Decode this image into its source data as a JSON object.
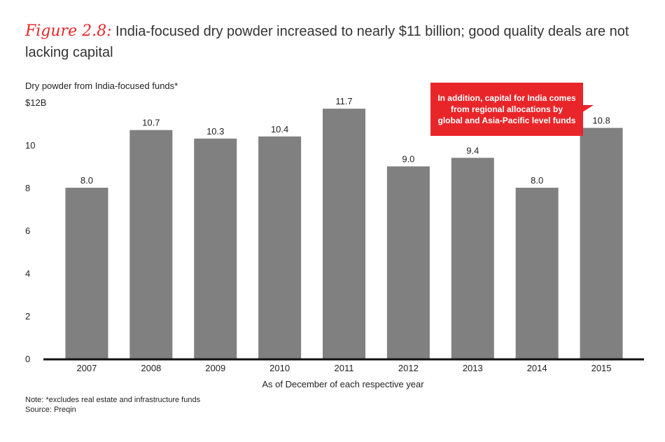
{
  "title": {
    "figure_label": "Figure 2.8:",
    "text": "India-focused dry powder increased to nearly $11 billion; good quality deals are not lacking capital"
  },
  "note": "Note: *excludes real estate and infrastructure funds",
  "source": "Source: Preqin",
  "callout": {
    "text": "In addition, capital for India comes from regional allocations by global and Asia-Pacific level funds",
    "color": "#e8262a"
  },
  "chart_data": {
    "type": "bar",
    "ylabel": "Dry powder from India-focused funds*",
    "xlabel": "As of December of each respective year",
    "categories": [
      "2007",
      "2008",
      "2009",
      "2010",
      "2011",
      "2012",
      "2013",
      "2014",
      "2015"
    ],
    "values": [
      8.0,
      10.7,
      10.3,
      10.4,
      11.7,
      9.0,
      9.4,
      8.0,
      10.8
    ],
    "value_labels": [
      "8.0",
      "10.7",
      "10.3",
      "10.4",
      "11.7",
      "9.0",
      "9.4",
      "8.0",
      "10.8"
    ],
    "ylim": [
      0,
      12
    ],
    "yticks": [
      0,
      2,
      4,
      6,
      8,
      10,
      12
    ],
    "ytick_labels": [
      "0",
      "2",
      "4",
      "6",
      "8",
      "10",
      "$12B"
    ],
    "bar_color": "#7f807f",
    "grid": false,
    "legend": "none"
  }
}
